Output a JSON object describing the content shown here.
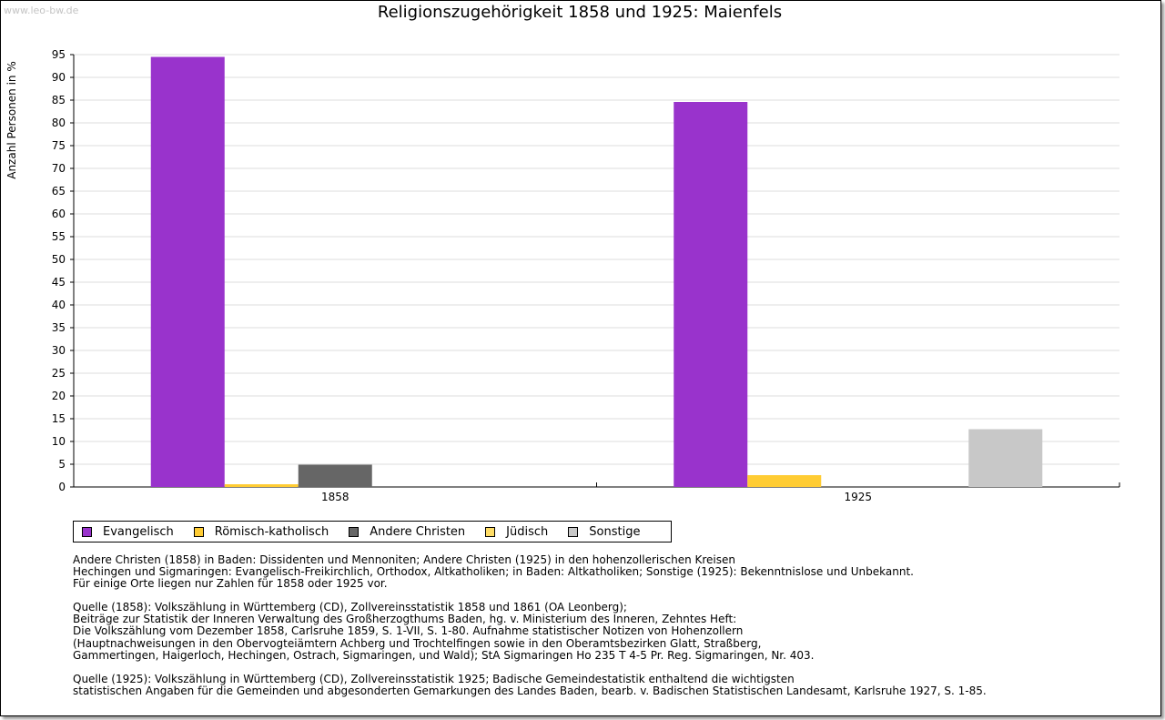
{
  "watermark": "www.leo-bw.de",
  "chart_data": {
    "type": "bar",
    "title": "Religionszugehörigkeit 1858 und 1925: Maienfels",
    "xlabel": "",
    "ylabel": "Anzahl Personen in %",
    "ylim": [
      0,
      95
    ],
    "yticks": [
      0,
      5,
      10,
      15,
      20,
      25,
      30,
      35,
      40,
      45,
      50,
      55,
      60,
      65,
      70,
      75,
      80,
      85,
      90,
      95
    ],
    "grid": true,
    "legend_position": "bottom-left",
    "categories": [
      "1858",
      "1925"
    ],
    "series": [
      {
        "name": "Evangelisch",
        "color": "#9933cc",
        "values": [
          94.5,
          84.6
        ]
      },
      {
        "name": "Römisch-katholisch",
        "color": "#ffcc33",
        "values": [
          0.6,
          2.6
        ]
      },
      {
        "name": "Andere Christen",
        "color": "#666666",
        "values": [
          4.9,
          0
        ]
      },
      {
        "name": "Jüdisch",
        "color": "#ffdd66",
        "values": [
          0,
          0
        ]
      },
      {
        "name": "Sonstige",
        "color": "#c8c8c8",
        "values": [
          0,
          12.7
        ]
      }
    ]
  },
  "notes": [
    [
      "Andere Christen (1858) in Baden: Dissidenten und Mennoniten; Andere Christen (1925) in den hohenzollerischen Kreisen",
      "Hechingen und Sigmaringen: Evangelisch-Freikirchlich, Orthodox, Altkatholiken; in Baden: Altkatholiken; Sonstige (1925): Bekenntnislose und Unbekannt.",
      "Für einige Orte liegen nur Zahlen für 1858 oder 1925 vor."
    ],
    [
      "Quelle (1858): Volkszählung in Württemberg (CD), Zollvereinsstatistik 1858 und 1861 (OA Leonberg);",
      "Beiträge zur Statistik der Inneren Verwaltung des Großherzogthums Baden, hg. v. Ministerium des Inneren, Zehntes Heft:",
      "Die Volkszählung vom Dezember 1858, Carlsruhe 1859, S. 1-VII, S. 1-80. Aufnahme statistischer Notizen von Hohenzollern",
      "(Hauptnachweisungen in den Obervogteiämtern Achberg und Trochtelfingen sowie in den Oberamtsbezirken Glatt, Straßberg,",
      "Gammertingen, Haigerloch, Hechingen, Ostrach, Sigmaringen, und Wald); StA Sigmaringen Ho 235 T 4-5 Pr. Reg. Sigmaringen, Nr. 403."
    ],
    [
      "Quelle (1925): Volkszählung in Württemberg (CD), Zollvereinsstatistik 1925; Badische Gemeindestatistik enthaltend die wichtigsten",
      "statistischen Angaben für die Gemeinden und abgesonderten Gemarkungen des Landes Baden, bearb. v. Badischen Statistischen Landesamt, Karlsruhe 1927, S. 1-85."
    ]
  ]
}
